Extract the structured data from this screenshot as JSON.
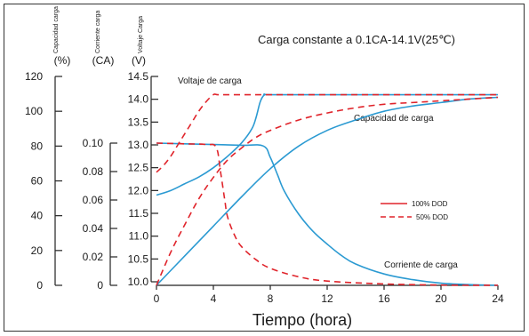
{
  "chart_data": {
    "type": "line",
    "title": "Carga constante a 0.1CA-14.1V(25℃)",
    "xlabel": "Tiempo (hora)",
    "xticks": [
      0,
      4,
      8,
      12,
      16,
      20,
      24
    ],
    "xlim": [
      0,
      24
    ],
    "axes": [
      {
        "name": "capacity",
        "header": "Capacidad carga",
        "unit": "(%)",
        "ticks": [
          "0",
          "20",
          "40",
          "60",
          "80",
          "100",
          "120"
        ],
        "ylim": [
          0,
          120
        ]
      },
      {
        "name": "current",
        "header": "Corriente carga",
        "unit": "(CA)",
        "ticks": [
          "0",
          "0.02",
          "0.04",
          "0.06",
          "0.08",
          "0.10"
        ],
        "ylim": [
          0,
          0.1
        ]
      },
      {
        "name": "voltage",
        "header": "Voltaje Carga",
        "unit": "(V)",
        "ticks": [
          "10.0",
          "10.5",
          "11.0",
          "11.5",
          "12.0",
          "12.5",
          "13.0",
          "13.5",
          "14.0",
          "14.5"
        ],
        "ylim": [
          10.0,
          14.5
        ]
      }
    ],
    "legend": [
      {
        "label": "100% DOD",
        "style": "solid",
        "color": "#e0242b"
      },
      {
        "label": "50% DOD",
        "style": "dashed",
        "color": "#e0242b"
      }
    ],
    "annotations": [
      "Voltaje de carga",
      "Capacidad de carga",
      "Corriente de carga"
    ],
    "grid": false,
    "series": [
      {
        "name": "Voltaje de carga",
        "dod": "100%",
        "axis": "voltage",
        "color": "#2b9ad2",
        "style": "solid",
        "x": [
          0,
          1,
          2,
          3,
          4,
          5,
          6,
          6.7,
          7,
          7.3,
          7.6,
          8,
          12,
          16,
          20,
          24
        ],
        "y": [
          11.9,
          12.0,
          12.15,
          12.3,
          12.5,
          12.75,
          13.05,
          13.35,
          13.6,
          13.95,
          14.1,
          14.1,
          14.1,
          14.1,
          14.1,
          14.1
        ]
      },
      {
        "name": "Voltaje de carga",
        "dod": "50%",
        "axis": "voltage",
        "color": "#e0242b",
        "style": "dashed",
        "x": [
          0,
          0.5,
          1,
          1.5,
          2,
          2.5,
          3,
          3.5,
          4,
          4.3,
          5,
          8,
          12,
          16,
          20,
          24
        ],
        "y": [
          12.4,
          12.55,
          12.75,
          13.0,
          13.25,
          13.5,
          13.75,
          13.95,
          14.1,
          14.1,
          14.1,
          14.1,
          14.1,
          14.1,
          14.1,
          14.1
        ]
      },
      {
        "name": "Corriente de carga",
        "dod": "100%",
        "axis": "current",
        "color": "#2b9ad2",
        "style": "solid",
        "x": [
          0,
          2,
          4,
          6,
          7.5,
          8,
          8.5,
          9,
          10,
          11,
          12,
          13,
          14,
          16,
          18,
          20,
          22,
          24
        ],
        "y": [
          0.1,
          0.0995,
          0.099,
          0.0985,
          0.098,
          0.09,
          0.078,
          0.066,
          0.05,
          0.038,
          0.029,
          0.021,
          0.015,
          0.008,
          0.004,
          0.0015,
          0.0005,
          0
        ]
      },
      {
        "name": "Corriente de carga",
        "dod": "50%",
        "axis": "current",
        "color": "#e0242b",
        "style": "dashed",
        "x": [
          0,
          2,
          3.5,
          4.2,
          4.5,
          4.8,
          5,
          5.5,
          6,
          7,
          8,
          10,
          12,
          16,
          20,
          24
        ],
        "y": [
          0.1,
          0.0995,
          0.099,
          0.097,
          0.08,
          0.06,
          0.048,
          0.035,
          0.027,
          0.018,
          0.012,
          0.006,
          0.003,
          0.001,
          0.0002,
          0
        ]
      },
      {
        "name": "Capacidad de carga",
        "dod": "100%",
        "axis": "capacity",
        "color": "#2b9ad2",
        "style": "solid",
        "x": [
          0,
          2,
          4,
          6,
          8,
          10,
          12,
          14,
          16,
          18,
          20,
          22,
          24
        ],
        "y": [
          0,
          17,
          34,
          51,
          67,
          80,
          89,
          95,
          100,
          103,
          105,
          107,
          108
        ]
      },
      {
        "name": "Capacidad de carga",
        "dod": "50%",
        "axis": "capacity",
        "color": "#e0242b",
        "style": "dashed",
        "x": [
          0,
          1,
          2,
          3,
          4,
          5,
          6,
          7,
          8,
          10,
          12,
          14,
          16,
          18,
          20,
          22,
          24
        ],
        "y": [
          0,
          19,
          35,
          50,
          62,
          72,
          79,
          85,
          89,
          95,
          99,
          102,
          104,
          105,
          106,
          107,
          108
        ]
      }
    ]
  }
}
